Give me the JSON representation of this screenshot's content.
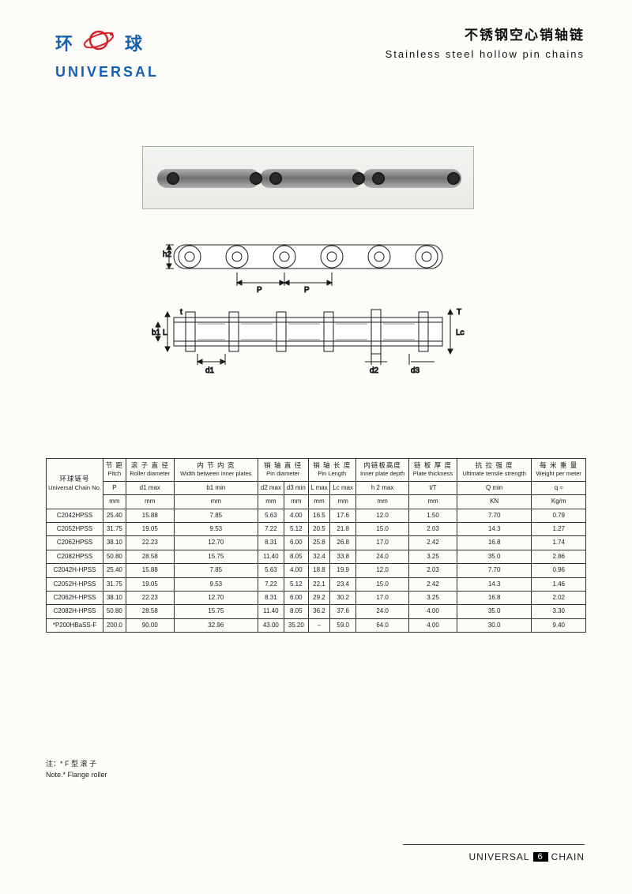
{
  "logo": {
    "char_left": "环",
    "char_right": "球",
    "text": "UNIVERSAL",
    "color": "#1560b3"
  },
  "title": {
    "cn": "不锈钢空心销轴链",
    "en": "Stainless steel hollow pin chains"
  },
  "schematic_labels": {
    "h2": "h2",
    "P": "P",
    "t": "t",
    "b1": "b1",
    "L": "L",
    "Lc": "Lc",
    "d1": "d1",
    "d2": "d2",
    "d3": "d3",
    "T": "T"
  },
  "table": {
    "headers": {
      "chain_no": {
        "cn": "环球链号",
        "en": "Universal Chain No."
      },
      "pitch": {
        "cn": "节 距",
        "en": "Pitch",
        "sym": "P",
        "unit": "mm"
      },
      "roller": {
        "cn": "滚 子 直 径",
        "en": "Roller diameter",
        "sym": "d1 max",
        "unit": "mm"
      },
      "width": {
        "cn": "内 节 内 宽",
        "en": "Width between inner plates",
        "sym": "b1 min",
        "unit": "mm"
      },
      "pin": {
        "cn": "销 轴 直 径",
        "en": "Pin diameter",
        "sym1": "d2 max",
        "sym2": "d3 min",
        "unit": "mm"
      },
      "pinlen": {
        "cn": "销 轴 长 度",
        "en": "Pin Length",
        "sym1": "L max",
        "sym2": "Lc max",
        "unit": "mm"
      },
      "plate_depth": {
        "cn": "内链板高度",
        "en": "Inner plate depth",
        "sym": "h 2 max",
        "unit": "mm"
      },
      "plate_thick": {
        "cn": "链 板 厚 度",
        "en": "Plate thickness",
        "sym": "t/T",
        "unit": "mm"
      },
      "tensile": {
        "cn": "抗 拉 强 度",
        "en": "Ultimate tensile strength",
        "sym": "Q min",
        "unit": "KN"
      },
      "weight": {
        "cn": "每 米 重 量",
        "en": "Weight per meter",
        "sym": "q ≈",
        "unit": "Kg/m"
      }
    },
    "rows": [
      {
        "no": "C2042HPSS",
        "P": "25.40",
        "d1": "15.88",
        "b1": "7.85",
        "d2": "5.63",
        "d3": "4.00",
        "L": "16.5",
        "Lc": "17.6",
        "h2": "12.0",
        "tT": "1.50",
        "Q": "7.70",
        "q": "0.79"
      },
      {
        "no": "C2052HPSS",
        "P": "31.75",
        "d1": "19.05",
        "b1": "9.53",
        "d2": "7.22",
        "d3": "5.12",
        "L": "20.5",
        "Lc": "21.8",
        "h2": "15.0",
        "tT": "2.03",
        "Q": "14.3",
        "q": "1.27"
      },
      {
        "no": "C2062HPSS",
        "P": "38.10",
        "d1": "22.23",
        "b1": "12.70",
        "d2": "8.31",
        "d3": "6.00",
        "L": "25.8",
        "Lc": "26.8",
        "h2": "17.0",
        "tT": "2.42",
        "Q": "16.8",
        "q": "1.74"
      },
      {
        "no": "C2082HPSS",
        "P": "50.80",
        "d1": "28.58",
        "b1": "15.75",
        "d2": "11.40",
        "d3": "8.05",
        "L": "32.4",
        "Lc": "33.8",
        "h2": "24.0",
        "tT": "3.25",
        "Q": "35.0",
        "q": "2.86"
      },
      {
        "no": "C2042H-HPSS",
        "P": "25.40",
        "d1": "15.88",
        "b1": "7.85",
        "d2": "5.63",
        "d3": "4.00",
        "L": "18.8",
        "Lc": "19.9",
        "h2": "12.0",
        "tT": "2.03",
        "Q": "7.70",
        "q": "0.96"
      },
      {
        "no": "C2052H-HPSS",
        "P": "31.75",
        "d1": "19.05",
        "b1": "9.53",
        "d2": "7.22",
        "d3": "5.12",
        "L": "22.1",
        "Lc": "23.4",
        "h2": "15.0",
        "tT": "2.42",
        "Q": "14.3",
        "q": "1.46"
      },
      {
        "no": "C2062H-HPSS",
        "P": "38.10",
        "d1": "22.23",
        "b1": "12.70",
        "d2": "8.31",
        "d3": "6.00",
        "L": "29.2",
        "Lc": "30.2",
        "h2": "17.0",
        "tT": "3.25",
        "Q": "16.8",
        "q": "2.02"
      },
      {
        "no": "C2082H-HPSS",
        "P": "50.80",
        "d1": "28.58",
        "b1": "15.75",
        "d2": "11.40",
        "d3": "8.05",
        "L": "36.2",
        "Lc": "37.6",
        "h2": "24.0",
        "tT": "4.00",
        "Q": "35.0",
        "q": "3.30"
      },
      {
        "no": "*P200HBaSS-F",
        "P": "200.0",
        "d1": "90.00",
        "b1": "32.96",
        "d2": "43.00",
        "d3": "35.20",
        "L": "–",
        "Lc": "59.0",
        "h2": "64.0",
        "tT": "4.00",
        "Q": "30.0",
        "q": "9.40"
      }
    ]
  },
  "note": {
    "cn": "注：* F 型 滚 子",
    "en": "Note.* Flange roller"
  },
  "footer": {
    "left": "UNIVERSAL",
    "page": "6",
    "right": "CHAIN"
  }
}
